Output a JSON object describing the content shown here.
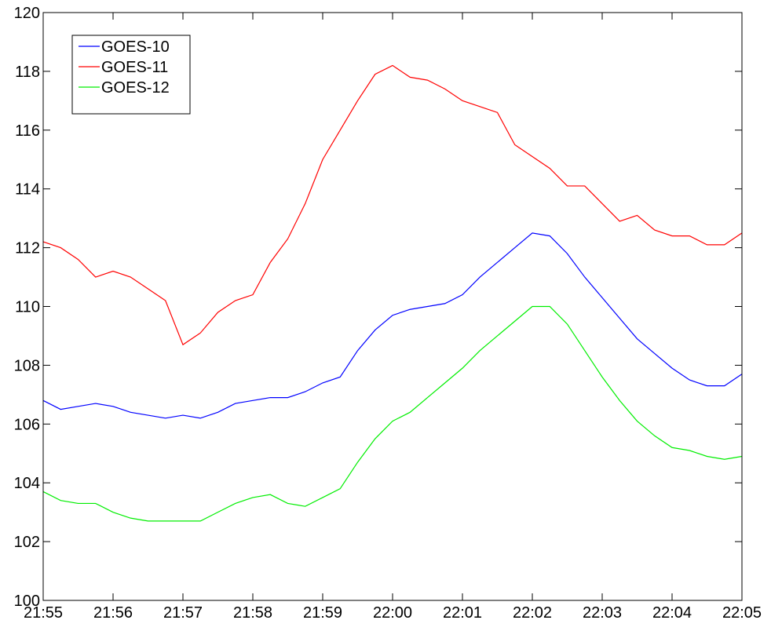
{
  "chart_data": {
    "type": "line",
    "x": [
      1315,
      1315.25,
      1315.5,
      1315.75,
      1316,
      1316.25,
      1316.5,
      1316.75,
      1317,
      1317.25,
      1317.5,
      1317.75,
      1318,
      1318.25,
      1318.5,
      1318.75,
      1319,
      1319.25,
      1319.5,
      1319.75,
      1320,
      1320.25,
      1320.5,
      1320.75,
      1321,
      1321.25,
      1321.5,
      1321.75,
      1322,
      1322.25,
      1322.5,
      1322.75,
      1323,
      1323.25,
      1323.5,
      1323.75,
      1324,
      1324.25,
      1324.5,
      1324.75,
      1325
    ],
    "series": [
      {
        "name": "GOES-10",
        "color": "#0000ff",
        "values": [
          106.8,
          106.5,
          106.6,
          106.7,
          106.6,
          106.4,
          106.3,
          106.2,
          106.3,
          106.2,
          106.4,
          106.7,
          106.8,
          106.9,
          106.9,
          107.1,
          107.4,
          107.6,
          108.5,
          109.2,
          109.7,
          109.9,
          110.0,
          110.1,
          110.4,
          111.0,
          111.5,
          112.0,
          112.5,
          112.4,
          111.8,
          111.0,
          110.3,
          109.6,
          108.9,
          108.4,
          107.9,
          107.5,
          107.3,
          107.3,
          107.7
        ]
      },
      {
        "name": "GOES-11",
        "color": "#ff0000",
        "values": [
          112.2,
          112.0,
          111.6,
          111.0,
          111.2,
          111.0,
          110.6,
          110.2,
          108.7,
          109.1,
          109.8,
          110.2,
          110.4,
          111.5,
          112.3,
          113.5,
          115.0,
          116.0,
          117.0,
          117.9,
          118.2,
          117.8,
          117.7,
          117.4,
          117.0,
          116.8,
          116.6,
          115.5,
          115.1,
          114.7,
          114.1,
          114.1,
          113.5,
          112.9,
          113.1,
          112.6,
          112.4,
          112.4,
          112.1,
          112.1,
          112.5
        ]
      },
      {
        "name": "GOES-12",
        "color": "#00ee00",
        "values": [
          103.7,
          103.4,
          103.3,
          103.3,
          103.0,
          102.8,
          102.7,
          102.7,
          102.7,
          102.7,
          103.0,
          103.3,
          103.5,
          103.6,
          103.3,
          103.2,
          103.5,
          103.8,
          104.7,
          105.5,
          106.1,
          106.4,
          106.9,
          107.4,
          107.9,
          108.5,
          109.0,
          109.5,
          110.0,
          110.0,
          109.4,
          108.5,
          107.6,
          106.8,
          106.1,
          105.6,
          105.2,
          105.1,
          104.9,
          104.8,
          104.9
        ]
      }
    ],
    "xlim": [
      1315,
      1325
    ],
    "xticks": [
      {
        "value": 1315,
        "label": "21:55"
      },
      {
        "value": 1316,
        "label": "21:56"
      },
      {
        "value": 1317,
        "label": "21:57"
      },
      {
        "value": 1318,
        "label": "21:58"
      },
      {
        "value": 1319,
        "label": "21:59"
      },
      {
        "value": 1320,
        "label": "22:00"
      },
      {
        "value": 1321,
        "label": "22:01"
      },
      {
        "value": 1322,
        "label": "22:02"
      },
      {
        "value": 1323,
        "label": "22:03"
      },
      {
        "value": 1324,
        "label": "22:04"
      },
      {
        "value": 1325,
        "label": "22:05"
      }
    ],
    "ylim": [
      100,
      120
    ],
    "yticks": [
      100,
      102,
      104,
      106,
      108,
      110,
      112,
      114,
      116,
      118,
      120
    ],
    "grid": false,
    "legend": "upper left"
  }
}
